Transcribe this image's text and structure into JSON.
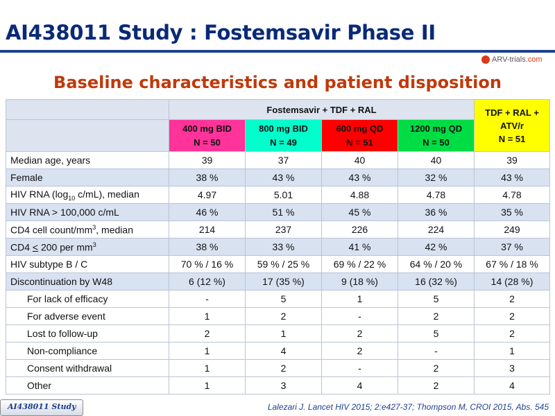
{
  "slide": {
    "title": "AI438011 Study : Fostemsavir Phase II",
    "subtitle": "Baseline characteristics and patient disposition",
    "logo": {
      "brand": "ARV-trials",
      "suffix": ".com"
    },
    "footer_tag": "AI438011 Study",
    "citation": "Lalezari J. Lancet HIV 2015; 2:e427-37;  Thompson M, CROI 2015, Abs. 545"
  },
  "colors": {
    "title": "#0a2a78",
    "subtitle": "#c0390b",
    "arm1": "#ff3399",
    "arm2": "#00ffcc",
    "arm3": "#ff0000",
    "arm4": "#00dd44",
    "tdf": "#ffff00",
    "stripe": "#d9e2f1"
  },
  "table": {
    "group_header": "Fostemsavir + TDF + RAL",
    "arms": [
      {
        "dose": "400 mg BID",
        "n": "N = 50"
      },
      {
        "dose": "800 mg BID",
        "n": "N = 49"
      },
      {
        "dose": "600 mg QD",
        "n": "N = 51"
      },
      {
        "dose": "1200 mg QD",
        "n": "N = 50"
      }
    ],
    "tdf": {
      "line1": "TDF + RAL +",
      "line2": "ATV/r",
      "n": "N = 51"
    },
    "rows": [
      {
        "cells": [
          "39",
          "37",
          "40",
          "40",
          "39"
        ]
      },
      {
        "label": "Female",
        "cells": [
          "38 %",
          "43 %",
          "43 %",
          "32 %",
          "43 %"
        ]
      },
      {
        "cells": [
          "4.97",
          "5.01",
          "4.88",
          "4.78",
          "4.78"
        ]
      },
      {
        "label": "HIV RNA > 100,000 c/mL",
        "cells": [
          "46 %",
          "51 %",
          "45 %",
          "36 %",
          "35 %"
        ]
      },
      {
        "cells": [
          "214",
          "237",
          "226",
          "224",
          "249"
        ]
      },
      {
        "cells": [
          "38 %",
          "33 %",
          "41 %",
          "42 %",
          "37 %"
        ]
      },
      {
        "label": "HIV subtype B / C",
        "cells": [
          "70 % / 16 %",
          "59 % / 25 %",
          "69 % / 22 %",
          "64 % / 20 %",
          "67 % / 18 %"
        ]
      },
      {
        "label": "Discontinuation by W48",
        "cells": [
          "6 (12 %)",
          "17 (35 %)",
          "9 (18 %)",
          "16 (32 %)",
          "14 (28 %)"
        ]
      },
      {
        "label": "For lack of efficacy",
        "cells": [
          "-",
          "5",
          "1",
          "5",
          "2"
        ]
      },
      {
        "label": "For adverse event",
        "cells": [
          "1",
          "2",
          "-",
          "2",
          "2"
        ]
      },
      {
        "label": "Lost to follow-up",
        "cells": [
          "2",
          "1",
          "2",
          "5",
          "2"
        ]
      },
      {
        "label": "Non-compliance",
        "cells": [
          "1",
          "4",
          "2",
          "-",
          "1"
        ]
      },
      {
        "label": "Consent withdrawal",
        "cells": [
          "1",
          "2",
          "-",
          "2",
          "3"
        ]
      },
      {
        "label": "Other",
        "cells": [
          "1",
          "3",
          "4",
          "2",
          "4"
        ]
      }
    ],
    "row_labels_rich": {
      "age": "Median age, years",
      "rna_prefix": "HIV RNA (log",
      "rna_sub": "10",
      "rna_suffix": " c/mL), median",
      "cd4_prefix": "CD4 cell count/mm",
      "cd4_sup": "3",
      "cd4_suffix": ", median",
      "cd4lt_prefix": "CD4 ",
      "cd4lt_lt": "<",
      "cd4lt_mid": " 200 per mm",
      "cd4lt_sup": "3"
    }
  }
}
